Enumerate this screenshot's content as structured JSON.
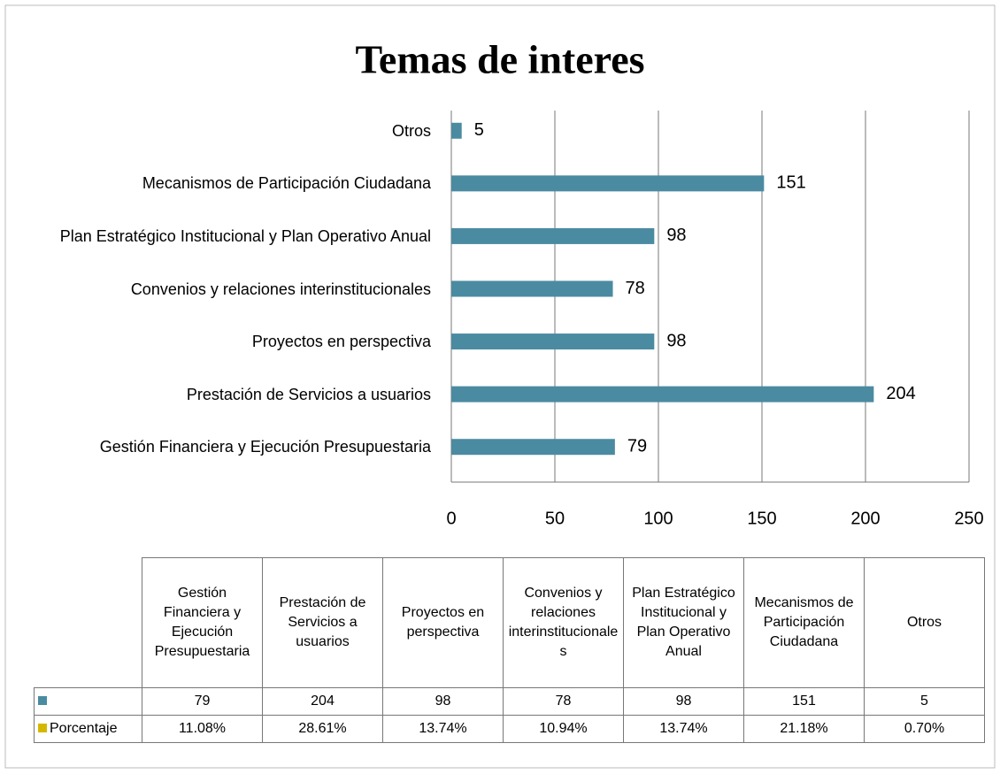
{
  "chart_data": {
    "type": "bar",
    "orientation": "horizontal",
    "title": "Temas de interes",
    "categories": [
      "Gestión Financiera y Ejecución Presupuestaria",
      "Prestación de Servicios a usuarios",
      "Proyectos en perspectiva",
      "Convenios y relaciones interinstitucionales",
      "Plan Estratégico Institucional y Plan Operativo Anual",
      "Mecanismos de Participación Ciudadana",
      "Otros"
    ],
    "values": [
      79,
      204,
      98,
      78,
      98,
      151,
      5
    ],
    "color": "#4a8ba1",
    "xlim": [
      0,
      250
    ],
    "xticks": [
      0,
      50,
      100,
      150,
      200,
      250
    ],
    "grid": true,
    "percent_row": {
      "label": "Porcentaje",
      "color": "#d4b800",
      "values": [
        11.08,
        28.61,
        13.74,
        10.94,
        13.74,
        21.18,
        0.7
      ],
      "value_labels": [
        "11.08%",
        "28.61%",
        "13.74%",
        "10.94%",
        "13.74%",
        "21.18%",
        "0.70%"
      ]
    }
  }
}
